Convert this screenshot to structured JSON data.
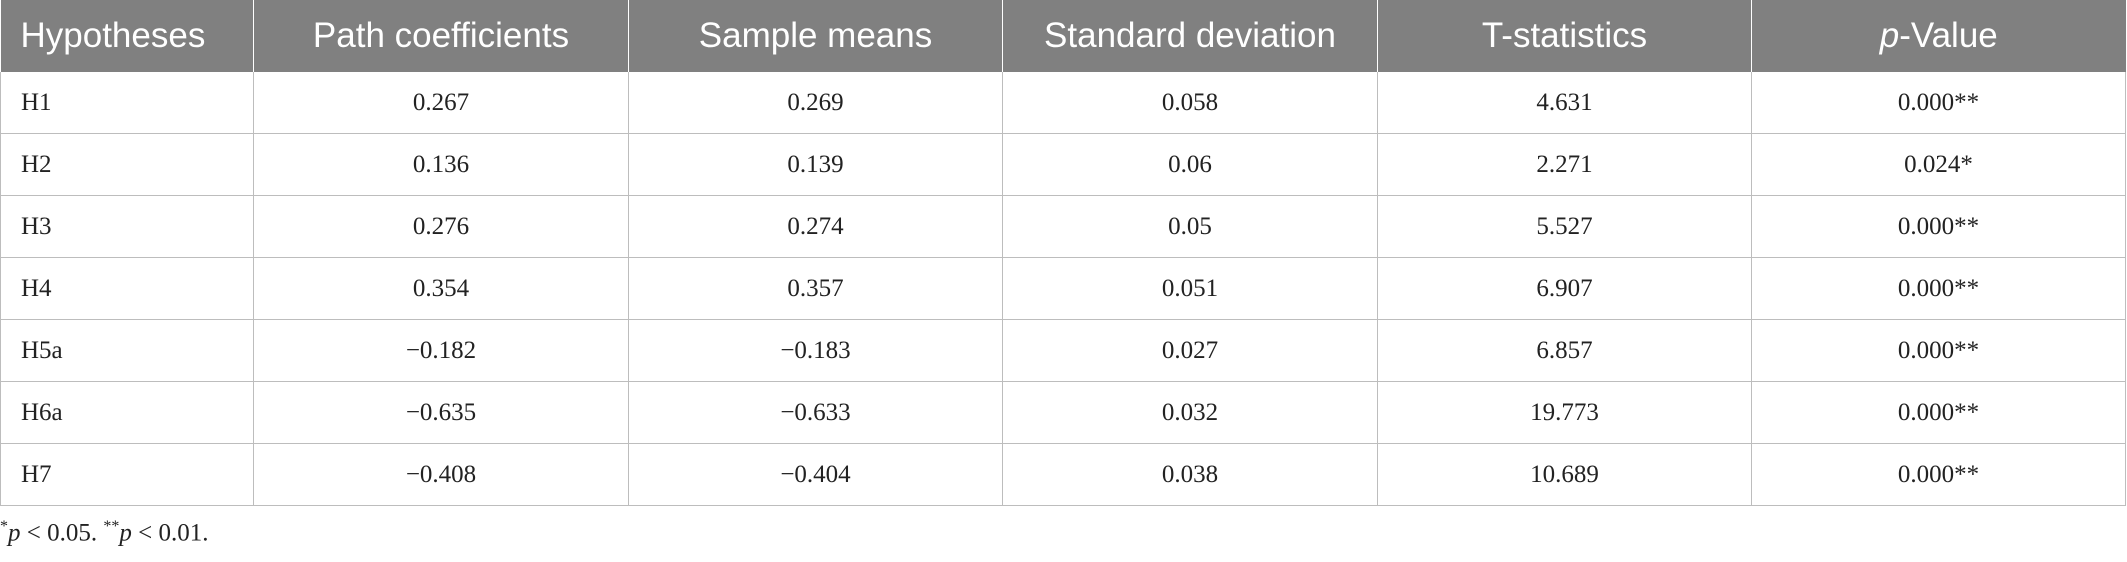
{
  "table": {
    "header": {
      "col1": "Hypotheses",
      "col2": "Path coefficients",
      "col3": "Sample means",
      "col4": "Standard deviation",
      "col5": "T-statistics",
      "col6_italic": "p",
      "col6_rest": "-Value"
    },
    "rows": [
      {
        "h": "H1",
        "path": "0.267",
        "mean": "0.269",
        "sd": "0.058",
        "t": "4.631",
        "p": "0.000**"
      },
      {
        "h": "H2",
        "path": "0.136",
        "mean": "0.139",
        "sd": "0.06",
        "t": "2.271",
        "p": "0.024*"
      },
      {
        "h": "H3",
        "path": "0.276",
        "mean": "0.274",
        "sd": "0.05",
        "t": "5.527",
        "p": "0.000**"
      },
      {
        "h": "H4",
        "path": "0.354",
        "mean": "0.357",
        "sd": "0.051",
        "t": "6.907",
        "p": "0.000**"
      },
      {
        "h": "H5a",
        "path": "−0.182",
        "mean": "−0.183",
        "sd": "0.027",
        "t": "6.857",
        "p": "0.000**"
      },
      {
        "h": "H6a",
        "path": "−0.635",
        "mean": "−0.633",
        "sd": "0.032",
        "t": "19.773",
        "p": "0.000**"
      },
      {
        "h": "H7",
        "path": "−0.408",
        "mean": "−0.404",
        "sd": "0.038",
        "t": "10.689",
        "p": "0.000**"
      }
    ]
  },
  "footnote": {
    "mark1": "*",
    "p1": "p",
    "text1": " < 0.05. ",
    "mark2": "**",
    "p2": "p",
    "text2": " < 0.01."
  }
}
